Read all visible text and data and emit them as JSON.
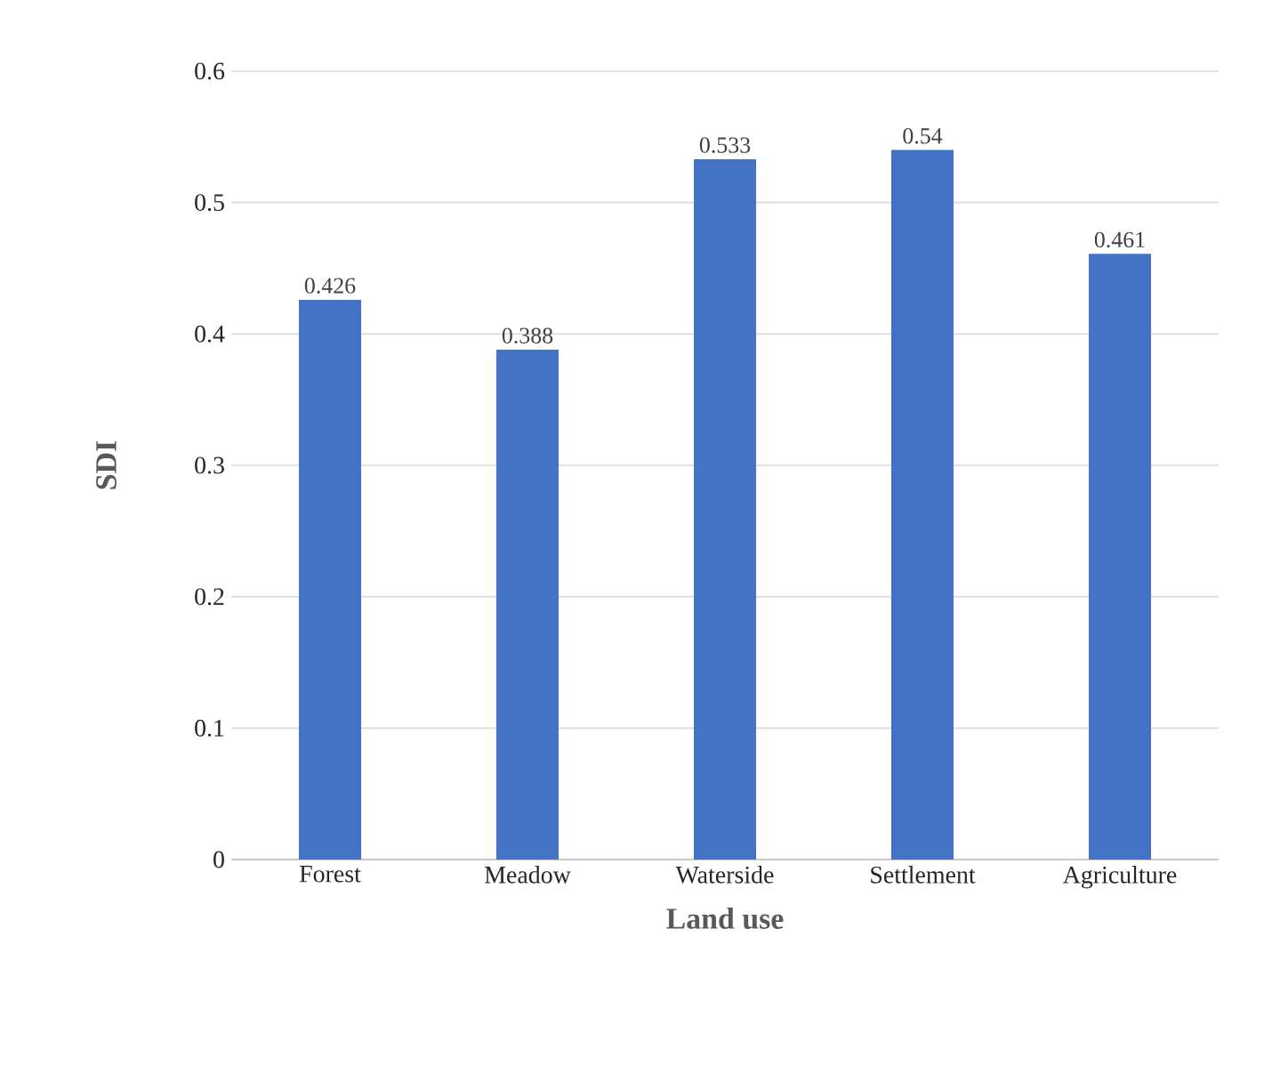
{
  "chart_data": {
    "type": "bar",
    "xlabel": "Land use",
    "ylabel": "SDI",
    "categories": [
      "Forest",
      "Meadow",
      "Waterside",
      "Settlement",
      "Agriculture"
    ],
    "values": [
      0.426,
      0.388,
      0.533,
      0.54,
      0.461
    ],
    "color": "#4472c4",
    "ylim": [
      0,
      0.6
    ],
    "yticks": [
      0,
      0.1,
      0.2,
      0.3,
      0.4,
      0.5,
      0.6
    ],
    "grid": "y",
    "data_labels": true
  }
}
